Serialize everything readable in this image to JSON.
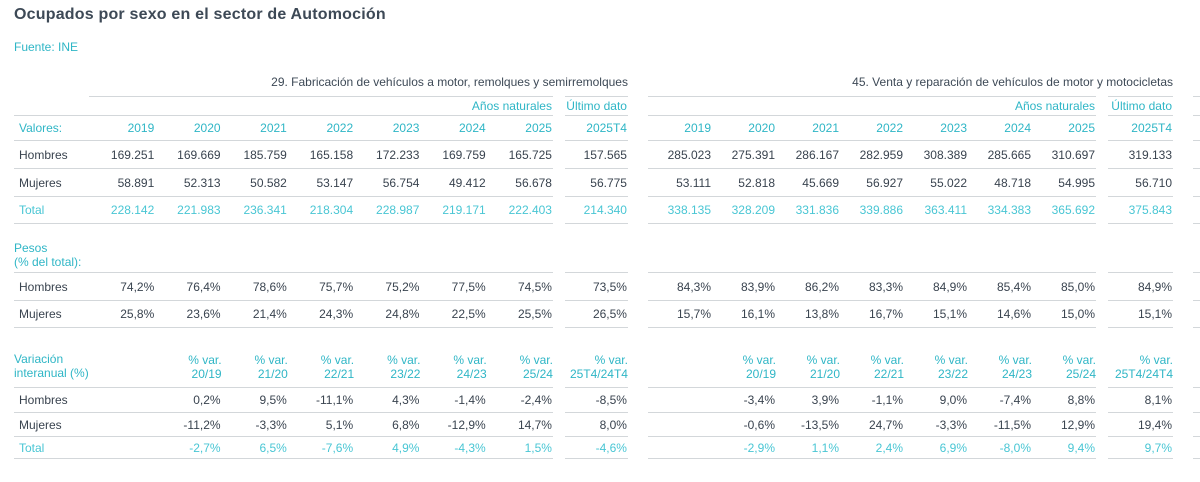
{
  "title": "Ocupados por sexo en el sector de Automoción",
  "source": "Fuente: INE",
  "colors": {
    "accent": "#2fb6c6",
    "accent_light": "#49c6d4",
    "heading": "#3d4956",
    "value_text": "#39434f",
    "line": "#d3d7da"
  },
  "labels": {
    "anos": "Años naturales",
    "ultimo": "Último dato",
    "valores": "Valores:",
    "hombres": "Hombres",
    "mujeres": "Mujeres",
    "total": "Total",
    "pesos1": "Pesos",
    "pesos2": "(% del total):",
    "var1": "Variación",
    "var2": "interanual (%)"
  },
  "sections": [
    {
      "title": "29. Fabricación de vehículos a motor, remolques y semirremolques",
      "years": [
        "2019",
        "2020",
        "2021",
        "2022",
        "2023",
        "2024",
        "2025"
      ],
      "ultimo": "2025T4",
      "valores": {
        "hombres": [
          "169.251",
          "169.669",
          "185.759",
          "165.158",
          "172.233",
          "169.759",
          "165.725",
          "157.565"
        ],
        "mujeres": [
          "58.891",
          "52.313",
          "50.582",
          "53.147",
          "56.754",
          "49.412",
          "56.678",
          "56.775"
        ],
        "total": [
          "228.142",
          "221.983",
          "236.341",
          "218.304",
          "228.987",
          "219.171",
          "222.403",
          "214.340"
        ]
      },
      "pesos": {
        "hombres": [
          "74,2%",
          "76,4%",
          "78,6%",
          "75,7%",
          "75,2%",
          "77,5%",
          "74,5%",
          "73,5%"
        ],
        "mujeres": [
          "25,8%",
          "23,6%",
          "21,4%",
          "24,3%",
          "24,8%",
          "22,5%",
          "25,5%",
          "26,5%"
        ]
      },
      "var_headers": [
        [
          "% var.",
          "20/19"
        ],
        [
          "% var.",
          "21/20"
        ],
        [
          "% var.",
          "22/21"
        ],
        [
          "% var.",
          "23/22"
        ],
        [
          "% var.",
          "24/23"
        ],
        [
          "% var.",
          "25/24"
        ]
      ],
      "var_ultimo_header": [
        "% var.",
        "25T4/24T4"
      ],
      "variacion": {
        "hombres": [
          "0,2%",
          "9,5%",
          "-11,1%",
          "4,3%",
          "-1,4%",
          "-2,4%",
          "-8,5%"
        ],
        "mujeres": [
          "-11,2%",
          "-3,3%",
          "5,1%",
          "6,8%",
          "-12,9%",
          "14,7%",
          "8,0%"
        ],
        "total": [
          "-2,7%",
          "6,5%",
          "-7,6%",
          "4,9%",
          "-4,3%",
          "1,5%",
          "-4,6%"
        ]
      }
    },
    {
      "title": "45. Venta y reparación de vehículos de motor y motocicletas",
      "years": [
        "2019",
        "2020",
        "2021",
        "2022",
        "2023",
        "2024",
        "2025"
      ],
      "ultimo": "2025T4",
      "valores": {
        "hombres": [
          "285.023",
          "275.391",
          "286.167",
          "282.959",
          "308.389",
          "285.665",
          "310.697",
          "319.133"
        ],
        "mujeres": [
          "53.111",
          "52.818",
          "45.669",
          "56.927",
          "55.022",
          "48.718",
          "54.995",
          "56.710"
        ],
        "total": [
          "338.135",
          "328.209",
          "331.836",
          "339.886",
          "363.411",
          "334.383",
          "365.692",
          "375.843"
        ]
      },
      "pesos": {
        "hombres": [
          "84,3%",
          "83,9%",
          "86,2%",
          "83,3%",
          "84,9%",
          "85,4%",
          "85,0%",
          "84,9%"
        ],
        "mujeres": [
          "15,7%",
          "16,1%",
          "13,8%",
          "16,7%",
          "15,1%",
          "14,6%",
          "15,0%",
          "15,1%"
        ]
      },
      "var_headers": [
        [
          "% var.",
          "20/19"
        ],
        [
          "% var.",
          "21/20"
        ],
        [
          "% var.",
          "22/21"
        ],
        [
          "% var.",
          "23/22"
        ],
        [
          "% var.",
          "24/23"
        ],
        [
          "% var.",
          "25/24"
        ]
      ],
      "var_ultimo_header": [
        "% var.",
        "25T4/24T4"
      ],
      "variacion": {
        "hombres": [
          "-3,4%",
          "3,9%",
          "-1,1%",
          "9,0%",
          "-7,4%",
          "8,8%",
          "8,1%"
        ],
        "mujeres": [
          "-0,6%",
          "-13,5%",
          "24,7%",
          "-3,3%",
          "-11,5%",
          "12,9%",
          "19,4%"
        ],
        "total": [
          "-2,9%",
          "1,1%",
          "2,4%",
          "6,9%",
          "-8,0%",
          "9,4%",
          "9,7%"
        ]
      }
    }
  ]
}
